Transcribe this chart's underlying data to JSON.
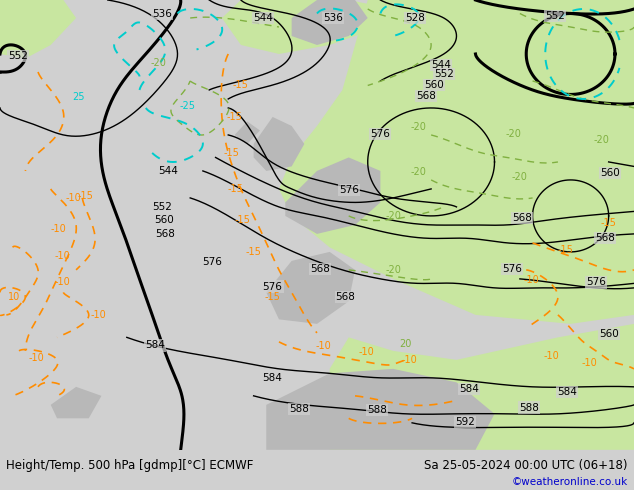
{
  "title_left": "Height/Temp. 500 hPa [gdmp][°C] ECMWF",
  "title_right": "Sa 25-05-2024 00:00 UTC (06+18)",
  "credit": "©weatheronline.co.uk",
  "bg_color": "#d8d8d8",
  "map_light_green": "#c8e6a0",
  "land_gray": "#b8b8b8",
  "ocean_gray": "#d0d0d0",
  "figure_width": 6.34,
  "figure_height": 4.9,
  "dpi": 100,
  "bottom_bar_height": 0.082,
  "bottom_bar_color": "#ffffff",
  "bottom_text_color": "#000000",
  "credit_color": "#0000cc",
  "font_size_bottom": 8.5,
  "font_size_credit": 7.5
}
